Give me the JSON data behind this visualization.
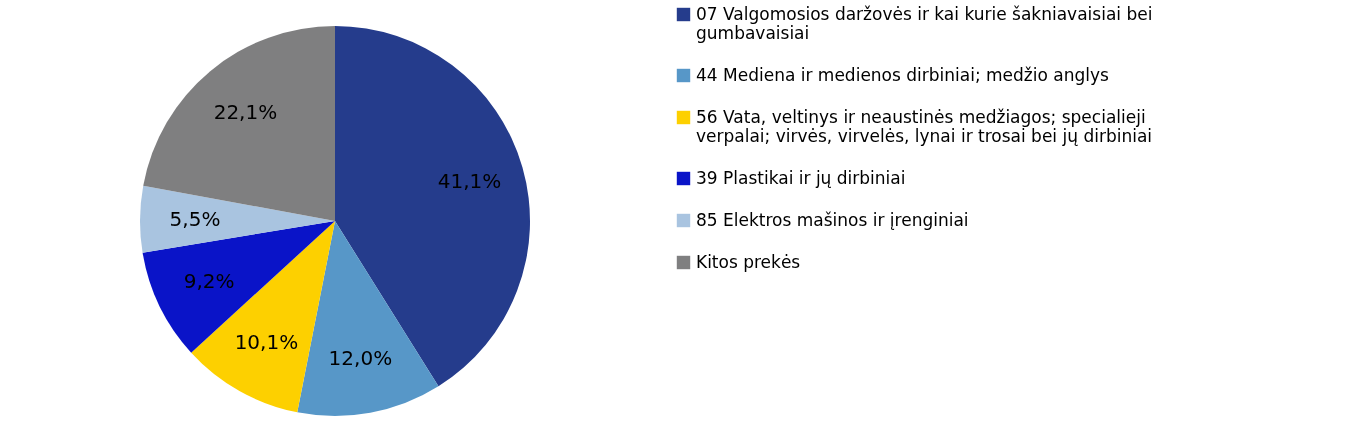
{
  "chart_data": {
    "type": "pie",
    "categories": [
      "07 Valgomosios daržovės ir kai kurie šakniavaisiai  bei gumbavaisiai",
      "44 Mediena ir medienos dirbiniai; medžio anglys",
      "56 Vata, veltinys ir neaustinės medžiagos; specialieji verpalai; virvės, virvelės, lynai ir trosai bei jų dirbiniai",
      "39 Plastikai ir jų dirbiniai",
      "85 Elektros mašinos ir įrenginiai",
      "Kitos prekės"
    ],
    "values": [
      41.1,
      12.0,
      10.1,
      9.2,
      5.5,
      22.1
    ],
    "value_labels": [
      "41,1%",
      "12,0%",
      "10,1%",
      "9,2%",
      "5,5%",
      "22,1%"
    ],
    "colors": [
      "#253c8c",
      "#5797c8",
      "#fdd000",
      "#0a14c8",
      "#a9c4e0",
      "#7f7f80"
    ],
    "legend": "right"
  }
}
